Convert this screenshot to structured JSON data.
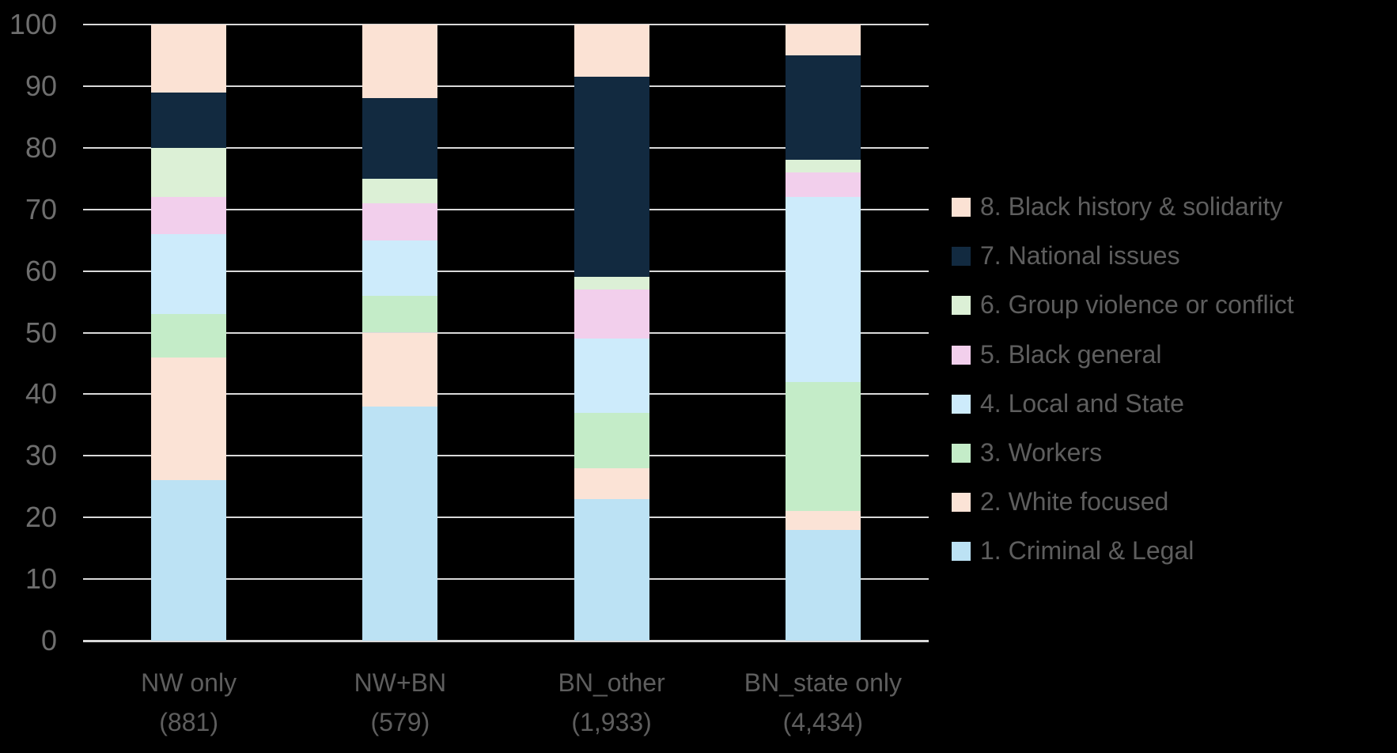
{
  "chart_data": {
    "type": "bar",
    "variant": "stacked-100-percent",
    "title": "",
    "xlabel": "",
    "ylabel": "",
    "ylim": [
      0,
      100
    ],
    "yticks": [
      0,
      10,
      20,
      30,
      40,
      50,
      60,
      70,
      80,
      90,
      100
    ],
    "grid": true,
    "legend_position": "right",
    "legend_order": "top-to-bottom is series 8 down to series 1",
    "background_color": "#000000",
    "gridline_color": "#D9D9D9",
    "tick_text_color": "#6E6E6E",
    "label_text_color": "#5E5E5E",
    "categories": [
      {
        "label": "NW only",
        "count": "(881)"
      },
      {
        "label": "NW+BN",
        "count": "(579)"
      },
      {
        "label": "BN_other",
        "count": "(1,933)"
      },
      {
        "label": "BN_state only",
        "count": "(4,434)"
      }
    ],
    "series": [
      {
        "name": "1. Criminal & Legal",
        "color": "#BCE2F4",
        "values": [
          26,
          38,
          23,
          18
        ]
      },
      {
        "name": "2. White focused",
        "color": "#FBE3D6",
        "values": [
          20,
          12,
          5,
          3
        ]
      },
      {
        "name": "3. Workers",
        "color": "#C4ECC8",
        "values": [
          7,
          6,
          9,
          21
        ]
      },
      {
        "name": "4. Local and State",
        "color": "#CDEBFB",
        "values": [
          13,
          9,
          12,
          30
        ]
      },
      {
        "name": "5. Black general",
        "color": "#F2CFEC",
        "values": [
          6,
          6,
          8,
          4
        ]
      },
      {
        "name": "6. Group violence or conflict",
        "color": "#DCF0D6",
        "values": [
          8,
          4,
          2,
          2
        ]
      },
      {
        "name": "7. National issues",
        "color": "#122A40",
        "values": [
          9,
          13,
          32.5,
          17
        ]
      },
      {
        "name": "8. Black history & solidarity",
        "color": "#FBE2D4",
        "values": [
          11,
          12,
          8.5,
          5
        ]
      }
    ]
  }
}
